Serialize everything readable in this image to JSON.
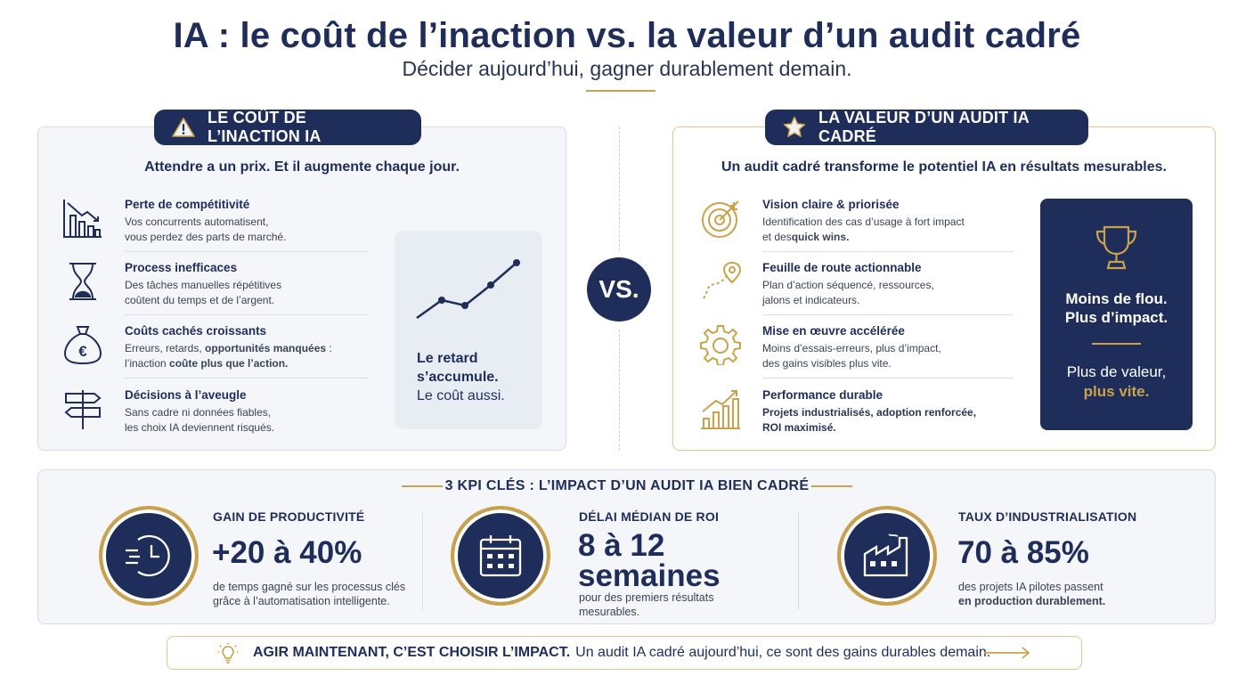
{
  "header": {
    "title": "IA : le coût de l’inaction vs. la valeur d’un audit cadré",
    "subtitle": "Décider aujourd’hui, gagner durablement demain."
  },
  "left": {
    "pill_icon": "warning-icon",
    "pill_label": "LE COÛT DE L’INACTION IA",
    "lead": "Attendre a un prix. Et il augmente chaque jour.",
    "items": [
      {
        "icon": "declining-bar-chart-icon",
        "title": "Perte de compétitivité",
        "desc_line1": "Vos concurrents automatisent,",
        "desc_line2": "vous perdez des parts de marché."
      },
      {
        "icon": "hourglass-icon",
        "title": "Process inefficaces",
        "desc_line1": "Des tâches manuelles répétitives",
        "desc_line2": "coûtent du temps et de l’argent."
      },
      {
        "icon": "money-bag-euro-icon",
        "title": "Coûts cachés croissants",
        "desc_line1_a": "Erreurs, retards, ",
        "desc_line1_b": "opportunités manquées",
        "desc_line1_c": " :",
        "desc_line2_a": "l’inaction ",
        "desc_line2_b": "coûte",
        "desc_line2_c": " plus que l’action."
      },
      {
        "icon": "signpost-icon",
        "title": "Décisions à l’aveugle",
        "desc_line1": "Sans cadre ni données fiables,",
        "desc_line2": "les choix IA deviennent risqués."
      }
    ],
    "trend_card": {
      "icon": "rising-trend-line-icon",
      "line1": "Le retard",
      "line2": "s’accumule.",
      "line3": "Le coût aussi."
    }
  },
  "vs": "VS.",
  "right": {
    "pill_icon": "star-icon",
    "pill_label": "LA VALEUR D’UN AUDIT IA CADRÉ",
    "lead": "Un audit cadré transforme le potentiel IA en résultats mesurables.",
    "items": [
      {
        "icon": "target-icon",
        "title": "Vision claire & priorisée",
        "desc_line1": "Identification des cas d’usage à fort impact",
        "desc_line2_a": "et des",
        "desc_line2_b": "quick wins",
        "desc_line2_c": "."
      },
      {
        "icon": "route-pin-icon",
        "title": "Feuille de route actionnable",
        "desc_line1": "Plan d’action séquencé, ressources,",
        "desc_line2": "jalons et indicateurs."
      },
      {
        "icon": "gear-icon",
        "title": "Mise en œuvre accélérée",
        "desc_line1": "Moins d’essais-erreurs, plus d’impact,",
        "desc_line2": "des gains visibles plus vite."
      },
      {
        "icon": "growth-chart-icon",
        "title": "Performance durable",
        "desc_line1": "Projets industrialisés, adoption renforcée,",
        "desc_line2": "ROI maximisé."
      }
    ],
    "value_card": {
      "icon": "trophy-icon",
      "line1": "Moins de flou.",
      "line2": "Plus d’impact.",
      "line3": "Plus de valeur,",
      "line4": "plus vite."
    }
  },
  "kpi": {
    "title": "3 KPI CLÉS : L’IMPACT D’UN AUDIT IA BIEN CADRÉ",
    "items": [
      {
        "icon": "clock-speed-icon",
        "label": "GAIN DE PRODUCTIVITÉ",
        "value": "+20 à 40%",
        "desc_line1": "de temps gagné sur les processus clés",
        "desc_line2": "grâce à l’automatisation intelligente."
      },
      {
        "icon": "calendar-icon",
        "label": "DÉLAI MÉDIAN DE ROI",
        "value_line1": "8 à 12",
        "value_line2": "semaines",
        "desc_line1": "pour des premiers résultats",
        "desc_line2": "mesurables."
      },
      {
        "icon": "factory-icon",
        "label": "TAUX D’INDUSTRIALISATION",
        "value": "70 à 85%",
        "desc_line1": "des projets IA pilotes passent",
        "desc_line2": "en production durablement."
      }
    ]
  },
  "cta": {
    "icon": "lightbulb-icon",
    "bold": "AGIR MAINTENANT, C’EST CHOISIR L’IMPACT.",
    "rest": "Un audit IA cadré aujourd’hui, ce sont des gains durables demain.",
    "arrow_icon": "arrow-right-icon"
  },
  "colors": {
    "navy": "#1f2d5a",
    "gold": "#c9a24b"
  }
}
